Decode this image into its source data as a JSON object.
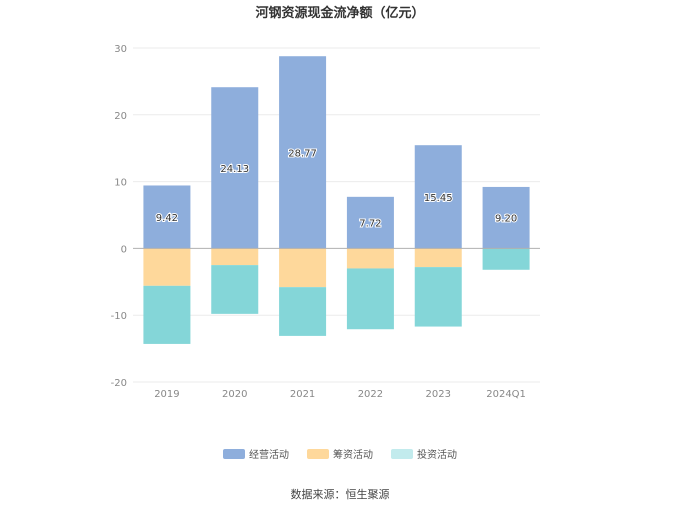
{
  "title": "河钢资源现金流净额（亿元）",
  "source": "数据来源：恒生聚源",
  "colors": {
    "operating": "#8eaedc",
    "financing": "#fed89b",
    "investing": "#84d6d8",
    "axis": "#b0b0b0",
    "grid": "#ebebeb",
    "tick_text": "#888888"
  },
  "legend": [
    {
      "name": "经营活动",
      "color": "#8eaedc"
    },
    {
      "name": "筹资活动",
      "color": "#fed89b"
    },
    {
      "name": "投资活动",
      "color": "#c2ebed"
    }
  ],
  "chart_data": {
    "type": "bar",
    "stacked": true,
    "title": "河钢资源现金流净额（亿元）",
    "categories": [
      "2019",
      "2020",
      "2021",
      "2022",
      "2023",
      "2024Q1"
    ],
    "series": [
      {
        "name": "经营活动",
        "values": [
          9.42,
          24.13,
          28.77,
          7.72,
          15.45,
          9.2
        ],
        "labels": [
          "9.42",
          "24.13",
          "28.77",
          "7.72",
          "15.45",
          "9.20"
        ]
      },
      {
        "name": "筹资活动",
        "values": [
          -5.6,
          -2.5,
          -5.8,
          -3.0,
          -2.8,
          0
        ]
      },
      {
        "name": "投资活动",
        "values": [
          -8.7,
          -7.3,
          -7.3,
          -9.1,
          -8.9,
          -3.2
        ]
      }
    ],
    "ylim": [
      -20,
      30
    ],
    "yticks": [
      30,
      20,
      10,
      0,
      -10,
      -20
    ],
    "grid": true,
    "legend_position": "bottom"
  }
}
